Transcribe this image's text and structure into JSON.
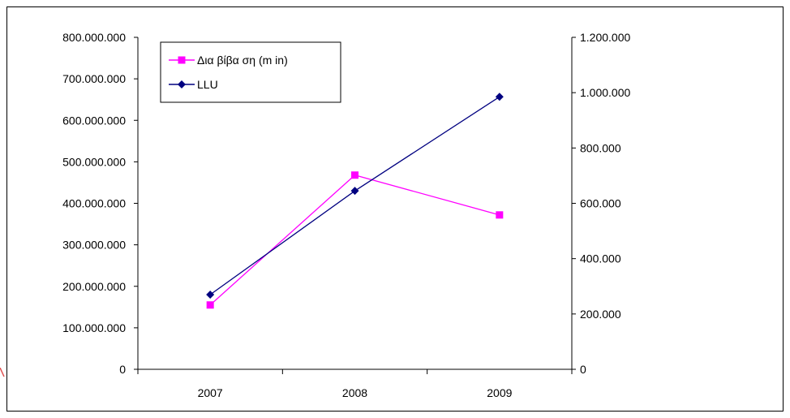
{
  "chart_data": {
    "type": "line",
    "categories": [
      "2007",
      "2008",
      "2009"
    ],
    "series": [
      {
        "name": "Δια βίβα ση (m in)",
        "axis": "left",
        "color": "#ff00ff",
        "marker": "square",
        "values": [
          155000000,
          468000000,
          372000000
        ]
      },
      {
        "name": "LLU",
        "axis": "right",
        "color": "#000080",
        "marker": "diamond",
        "values": [
          270000,
          645000,
          985000
        ]
      }
    ],
    "y_left": {
      "min": 0,
      "max": 800000000,
      "ticks": [
        "0",
        "100.000.000",
        "200.000.000",
        "300.000.000",
        "400.000.000",
        "500.000.000",
        "600.000.000",
        "700.000.000",
        "800.000.000"
      ]
    },
    "y_right": {
      "min": 0,
      "max": 1200000,
      "ticks": [
        "0",
        "200.000",
        "400.000",
        "600.000",
        "800.000",
        "1.000.000",
        "1.200.000"
      ]
    },
    "x_ticks": [
      "2007",
      "2008",
      "2009"
    ],
    "legend_position": "top-left",
    "grid": false
  }
}
